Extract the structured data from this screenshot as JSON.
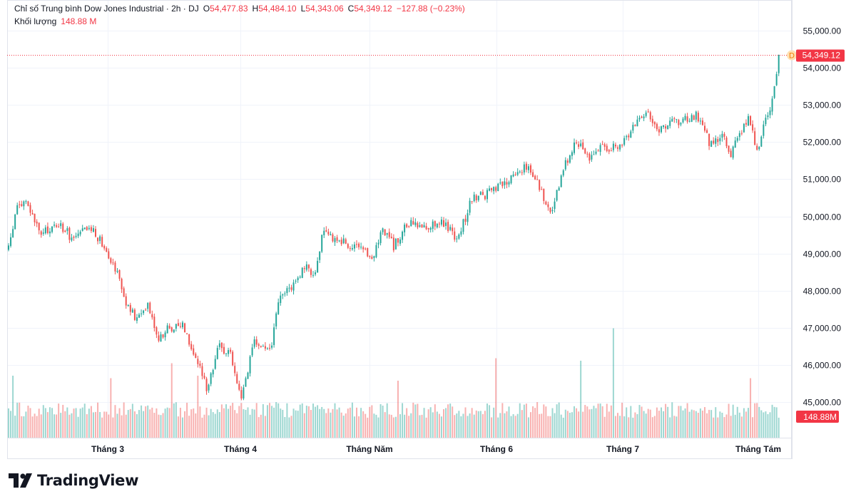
{
  "header": {
    "title": "Chỉ số Trung bình Dow Jones Industrial · 2h · DJ",
    "open_label": "O",
    "open": "54,477.83",
    "high_label": "H",
    "high": "54,484.10",
    "low_label": "L",
    "low": "54,343.06",
    "close_label": "C",
    "close": "54,349.12",
    "change": "−127.88 (−0.23%)",
    "volume_label": "Khối lượng",
    "volume": "148.88 M"
  },
  "colors": {
    "up": "#26a69a",
    "down": "#ef5350",
    "price_tag": "#f23645",
    "grid": "#f0f3fa",
    "text": "#131722"
  },
  "chart_data": {
    "type": "candlestick",
    "title": "Chỉ số Trung bình Dow Jones Industrial · 2h · DJ",
    "y_axis_ticks": [
      45000,
      46000,
      47000,
      48000,
      49000,
      50000,
      51000,
      52000,
      53000,
      54000,
      55000
    ],
    "y_tick_labels": [
      "45,000.00",
      "46,000.00",
      "47,000.00",
      "48,000.00",
      "49,000.00",
      "50,000.00",
      "51,000.00",
      "52,000.00",
      "53,000.00",
      "54,000.00",
      "55,000.00"
    ],
    "ylim": [
      44000,
      55400
    ],
    "x_tick_labels": [
      "Tháng 3",
      "Tháng 4",
      "Tháng Năm",
      "Tháng 6",
      "Tháng 7",
      "Tháng Tám"
    ],
    "last_price": 54349.12,
    "last_price_label": "54,349.12",
    "last_volume_label": "148.88M",
    "approx_path": [
      {
        "t": 0,
        "v": 49100
      },
      {
        "t": 12,
        "v": 50300
      },
      {
        "t": 25,
        "v": 50350
      },
      {
        "t": 45,
        "v": 49500
      },
      {
        "t": 70,
        "v": 49800
      },
      {
        "t": 90,
        "v": 49400
      },
      {
        "t": 115,
        "v": 49700
      },
      {
        "t": 135,
        "v": 49200
      },
      {
        "t": 155,
        "v": 48400
      },
      {
        "t": 165,
        "v": 47600
      },
      {
        "t": 180,
        "v": 47200
      },
      {
        "t": 195,
        "v": 47700
      },
      {
        "t": 210,
        "v": 46700
      },
      {
        "t": 225,
        "v": 47000
      },
      {
        "t": 245,
        "v": 47100
      },
      {
        "t": 262,
        "v": 46200
      },
      {
        "t": 278,
        "v": 45400
      },
      {
        "t": 295,
        "v": 46500
      },
      {
        "t": 312,
        "v": 46300
      },
      {
        "t": 325,
        "v": 45100
      },
      {
        "t": 345,
        "v": 46600
      },
      {
        "t": 368,
        "v": 46400
      },
      {
        "t": 378,
        "v": 47700
      },
      {
        "t": 395,
        "v": 48100
      },
      {
        "t": 415,
        "v": 48600
      },
      {
        "t": 430,
        "v": 48500
      },
      {
        "t": 440,
        "v": 49500
      },
      {
        "t": 460,
        "v": 49400
      },
      {
        "t": 480,
        "v": 49200
      },
      {
        "t": 510,
        "v": 48900
      },
      {
        "t": 525,
        "v": 49700
      },
      {
        "t": 540,
        "v": 49200
      },
      {
        "t": 560,
        "v": 49800
      },
      {
        "t": 585,
        "v": 49700
      },
      {
        "t": 605,
        "v": 49900
      },
      {
        "t": 630,
        "v": 49400
      },
      {
        "t": 650,
        "v": 50500
      },
      {
        "t": 670,
        "v": 50600
      },
      {
        "t": 690,
        "v": 50800
      },
      {
        "t": 710,
        "v": 51100
      },
      {
        "t": 725,
        "v": 51400
      },
      {
        "t": 745,
        "v": 50800
      },
      {
        "t": 760,
        "v": 50000
      },
      {
        "t": 775,
        "v": 51100
      },
      {
        "t": 795,
        "v": 52100
      },
      {
        "t": 815,
        "v": 51600
      },
      {
        "t": 835,
        "v": 51900
      },
      {
        "t": 855,
        "v": 51800
      },
      {
        "t": 875,
        "v": 52400
      },
      {
        "t": 895,
        "v": 52900
      },
      {
        "t": 910,
        "v": 52300
      },
      {
        "t": 930,
        "v": 52500
      },
      {
        "t": 950,
        "v": 52600
      },
      {
        "t": 965,
        "v": 52700
      },
      {
        "t": 985,
        "v": 51900
      },
      {
        "t": 1000,
        "v": 52200
      },
      {
        "t": 1012,
        "v": 51700
      },
      {
        "t": 1025,
        "v": 52200
      },
      {
        "t": 1038,
        "v": 52700
      },
      {
        "t": 1050,
        "v": 51700
      },
      {
        "t": 1060,
        "v": 52500
      },
      {
        "t": 1072,
        "v": 53200
      },
      {
        "t": 1080,
        "v": 54100
      },
      {
        "t": 1087,
        "v": 54550
      },
      {
        "t": 1092,
        "v": 54349
      }
    ]
  },
  "branding": {
    "logo_text": "TradingView"
  }
}
